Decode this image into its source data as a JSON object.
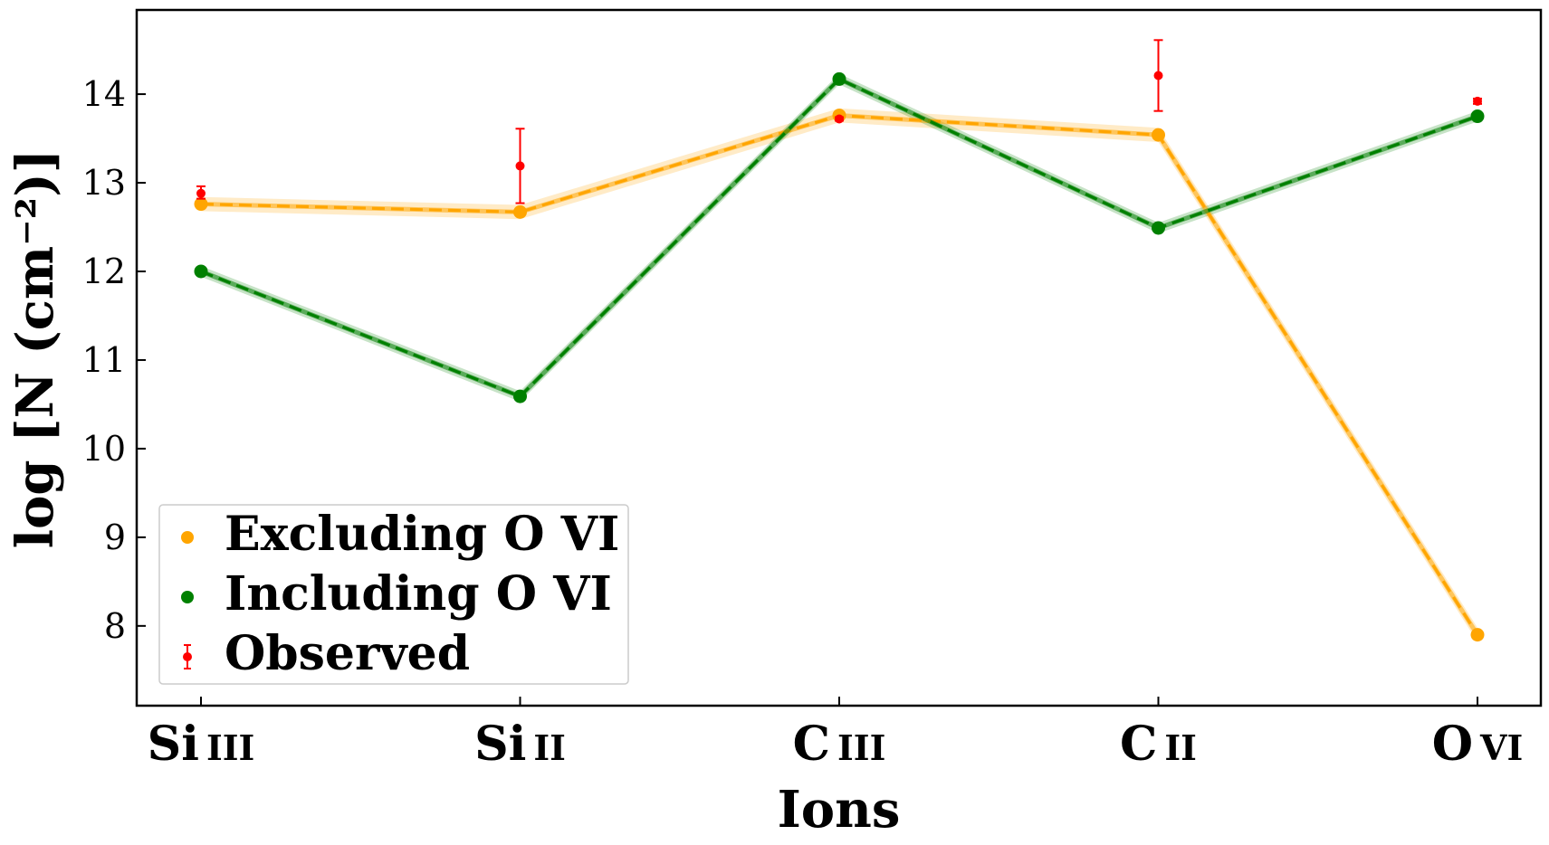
{
  "chart_data": {
    "type": "line",
    "title": "",
    "xlabel": "Ions",
    "ylabel": "log [N (cm⁻²)]",
    "categories": [
      "Si III",
      "Si II",
      "C III",
      "C II",
      "O VI"
    ],
    "category_labels": [
      {
        "element": "Si",
        "stage": "III"
      },
      {
        "element": "Si",
        "stage": "II"
      },
      {
        "element": "C",
        "stage": "III"
      },
      {
        "element": "C",
        "stage": "II"
      },
      {
        "element": "O",
        "stage": "VI"
      }
    ],
    "ylim": [
      7.1,
      14.95
    ],
    "yticks": [
      8,
      9,
      10,
      11,
      12,
      13,
      14
    ],
    "grid": false,
    "legend_position": "lower-left",
    "series": [
      {
        "name": "Excluding O VI",
        "color": "#ffa500",
        "style": "dashed",
        "band": 0.08,
        "values": [
          12.76,
          12.67,
          13.76,
          13.54,
          7.9
        ]
      },
      {
        "name": "Including O VI",
        "color": "#008000",
        "style": "dashed",
        "band": 0.06,
        "values": [
          12.0,
          10.59,
          14.17,
          12.49,
          13.75
        ]
      }
    ],
    "observed": {
      "name": "Observed",
      "color": "#ff0000",
      "values": [
        12.88,
        13.19,
        13.72,
        14.21,
        13.92
      ],
      "err_low": [
        0.06,
        0.42,
        0.02,
        0.4,
        0.03
      ],
      "err_high": [
        0.08,
        0.42,
        0.02,
        0.4,
        0.03
      ]
    }
  }
}
